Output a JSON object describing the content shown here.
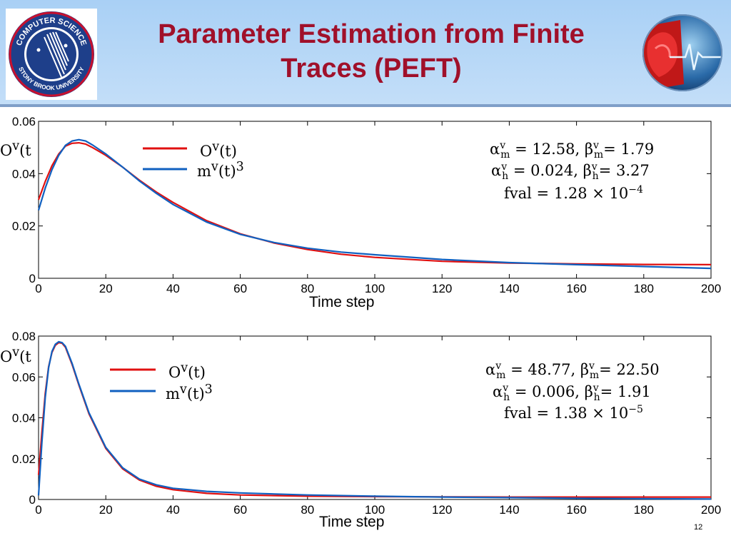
{
  "slide": {
    "title_line1": "Parameter Estimation from Finite",
    "title_line2": "Traces (PEFT)",
    "page_number": "12",
    "title_color": "#a0102a",
    "logo_left_icon": "computer-science-stony-brook-seal",
    "logo_left_text_top": "COMPUTER SCIENCE",
    "logo_left_text_bottom": "STONY BROOK UNIVERSITY",
    "logo_right_icon": "heart-ecg-icon"
  },
  "chart_data": [
    {
      "type": "line",
      "xlabel": "Time step",
      "ylabel_main": "O",
      "ylabel_sup": "v",
      "ylabel_tail": "(t",
      "xlim": [
        0,
        200
      ],
      "ylim": [
        0,
        0.06
      ],
      "x_ticks": [
        "0",
        "20",
        "40",
        "60",
        "80",
        "100",
        "120",
        "140",
        "160",
        "180",
        "200"
      ],
      "y_ticks": [
        "0",
        "0.02",
        "0.04",
        "0.06"
      ],
      "legend_position": "top-left",
      "series": [
        {
          "name_main": "O",
          "name_sup": "v",
          "name_tail": "(t)",
          "color": "#e01010",
          "x": [
            0,
            2,
            4,
            6,
            8,
            10,
            12,
            14,
            16,
            20,
            25,
            30,
            35,
            40,
            50,
            60,
            70,
            80,
            90,
            100,
            120,
            140,
            160,
            180,
            200
          ],
          "y": [
            0.03,
            0.037,
            0.043,
            0.0475,
            0.0505,
            0.0516,
            0.0518,
            0.0513,
            0.05,
            0.047,
            0.0425,
            0.0375,
            0.033,
            0.029,
            0.022,
            0.017,
            0.0135,
            0.011,
            0.0092,
            0.008,
            0.0065,
            0.0058,
            0.0055,
            0.0053,
            0.0052
          ]
        },
        {
          "name_main": "m",
          "name_sup": "v",
          "name_tail": "(t)",
          "name_tail_sup": "3",
          "color": "#1060c0",
          "x": [
            0,
            2,
            4,
            6,
            8,
            10,
            12,
            14,
            16,
            20,
            25,
            30,
            35,
            40,
            50,
            60,
            70,
            80,
            90,
            100,
            120,
            140,
            160,
            180,
            200
          ],
          "y": [
            0.026,
            0.0345,
            0.0415,
            0.047,
            0.0508,
            0.0525,
            0.053,
            0.0525,
            0.051,
            0.0475,
            0.0425,
            0.0372,
            0.0325,
            0.0282,
            0.0215,
            0.0168,
            0.0137,
            0.0115,
            0.01,
            0.009,
            0.0072,
            0.006,
            0.0052,
            0.0045,
            0.0038
          ]
        }
      ],
      "annotations": {
        "line1": "αᵛₘ = 12.58, βᵛₘ = 1.79",
        "alpha_m": "12.58",
        "beta_m": "1.79",
        "alpha_h": "0.024",
        "beta_h": "3.27",
        "fval_mantissa": "1.28",
        "fval_exponent": "−4"
      }
    },
    {
      "type": "line",
      "xlabel": "Time step",
      "ylabel_main": "O",
      "ylabel_sup": "v",
      "ylabel_tail": "(t",
      "xlim": [
        0,
        200
      ],
      "ylim": [
        0,
        0.08
      ],
      "x_ticks": [
        "0",
        "20",
        "40",
        "60",
        "80",
        "100",
        "120",
        "140",
        "160",
        "180",
        "200"
      ],
      "y_ticks": [
        "0",
        "0.02",
        "0.04",
        "0.06",
        "0.08"
      ],
      "legend_position": "top-left",
      "series": [
        {
          "name_main": "O",
          "name_sup": "v",
          "name_tail": "(t)",
          "color": "#e01010",
          "x": [
            0,
            1,
            2,
            3,
            4,
            5,
            6,
            7,
            8,
            10,
            12,
            15,
            20,
            25,
            30,
            35,
            40,
            50,
            60,
            80,
            100,
            120,
            140,
            160,
            180,
            200
          ],
          "y": [
            0.012,
            0.033,
            0.052,
            0.065,
            0.072,
            0.0755,
            0.0768,
            0.0765,
            0.0745,
            0.066,
            0.056,
            0.042,
            0.025,
            0.015,
            0.0095,
            0.0065,
            0.0048,
            0.003,
            0.0022,
            0.0016,
            0.0014,
            0.0013,
            0.0012,
            0.0012,
            0.0012,
            0.0012
          ]
        },
        {
          "name_main": "m",
          "name_sup": "v",
          "name_tail": "(t)",
          "name_tail_sup": "3",
          "color": "#1060c0",
          "x": [
            0,
            1,
            2,
            3,
            4,
            5,
            6,
            7,
            8,
            10,
            12,
            15,
            20,
            25,
            30,
            35,
            40,
            50,
            60,
            80,
            100,
            120,
            140,
            160,
            180,
            200
          ],
          "y": [
            0.002,
            0.028,
            0.05,
            0.0645,
            0.0725,
            0.076,
            0.0772,
            0.0768,
            0.075,
            0.0665,
            0.0565,
            0.0425,
            0.0255,
            0.0155,
            0.01,
            0.0072,
            0.0055,
            0.004,
            0.0032,
            0.0022,
            0.0016,
            0.0012,
            0.0009,
            0.0006,
            0.0004,
            0.0002
          ]
        }
      ],
      "annotations": {
        "alpha_m": "48.77",
        "beta_m": "22.50",
        "alpha_h": "0.006",
        "beta_h": "1.91",
        "fval_mantissa": "1.38",
        "fval_exponent": "−5"
      }
    }
  ]
}
